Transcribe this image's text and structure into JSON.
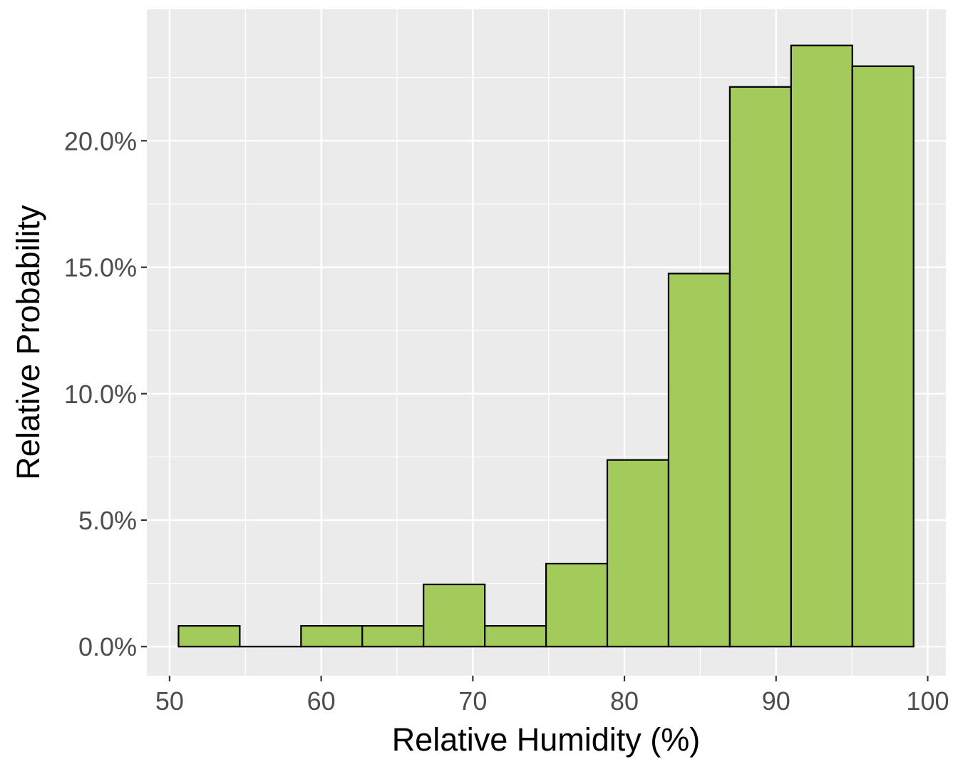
{
  "chart_data": {
    "type": "bar",
    "title": "",
    "xlabel": "Relative Humidity (%)",
    "ylabel": "Relative Probability",
    "xlim": [
      48.5,
      101.2
    ],
    "ylim": [
      -1.15,
      25.2
    ],
    "x_ticks": [
      50,
      60,
      70,
      80,
      90,
      100
    ],
    "x_tick_labels": [
      "50",
      "60",
      "70",
      "80",
      "90",
      "100"
    ],
    "y_ticks": [
      0,
      5,
      10,
      15,
      20
    ],
    "y_tick_labels": [
      "0.0%",
      "5.0%",
      "10.0%",
      "15.0%",
      "20.0%"
    ],
    "bin_width": 4.04,
    "bins": [
      {
        "start": 50.59,
        "end": 54.63,
        "value": 0.82
      },
      {
        "start": 54.63,
        "end": 58.67,
        "value": 0.0
      },
      {
        "start": 58.67,
        "end": 62.71,
        "value": 0.82
      },
      {
        "start": 62.71,
        "end": 66.75,
        "value": 0.82
      },
      {
        "start": 66.75,
        "end": 70.79,
        "value": 2.46
      },
      {
        "start": 70.79,
        "end": 74.83,
        "value": 0.82
      },
      {
        "start": 74.83,
        "end": 78.87,
        "value": 3.28
      },
      {
        "start": 78.87,
        "end": 82.91,
        "value": 7.38
      },
      {
        "start": 82.91,
        "end": 86.95,
        "value": 14.75
      },
      {
        "start": 86.95,
        "end": 90.99,
        "value": 22.13
      },
      {
        "start": 90.99,
        "end": 95.03,
        "value": 23.77
      },
      {
        "start": 95.03,
        "end": 99.07,
        "value": 22.95
      }
    ],
    "grid": true,
    "legend": "none",
    "colors": {
      "panel_background": "#ebebeb",
      "gridline": "#ffffff",
      "bar_fill": "#a3cb5c",
      "bar_stroke": "#000000",
      "tick_mark": "#333333"
    }
  }
}
